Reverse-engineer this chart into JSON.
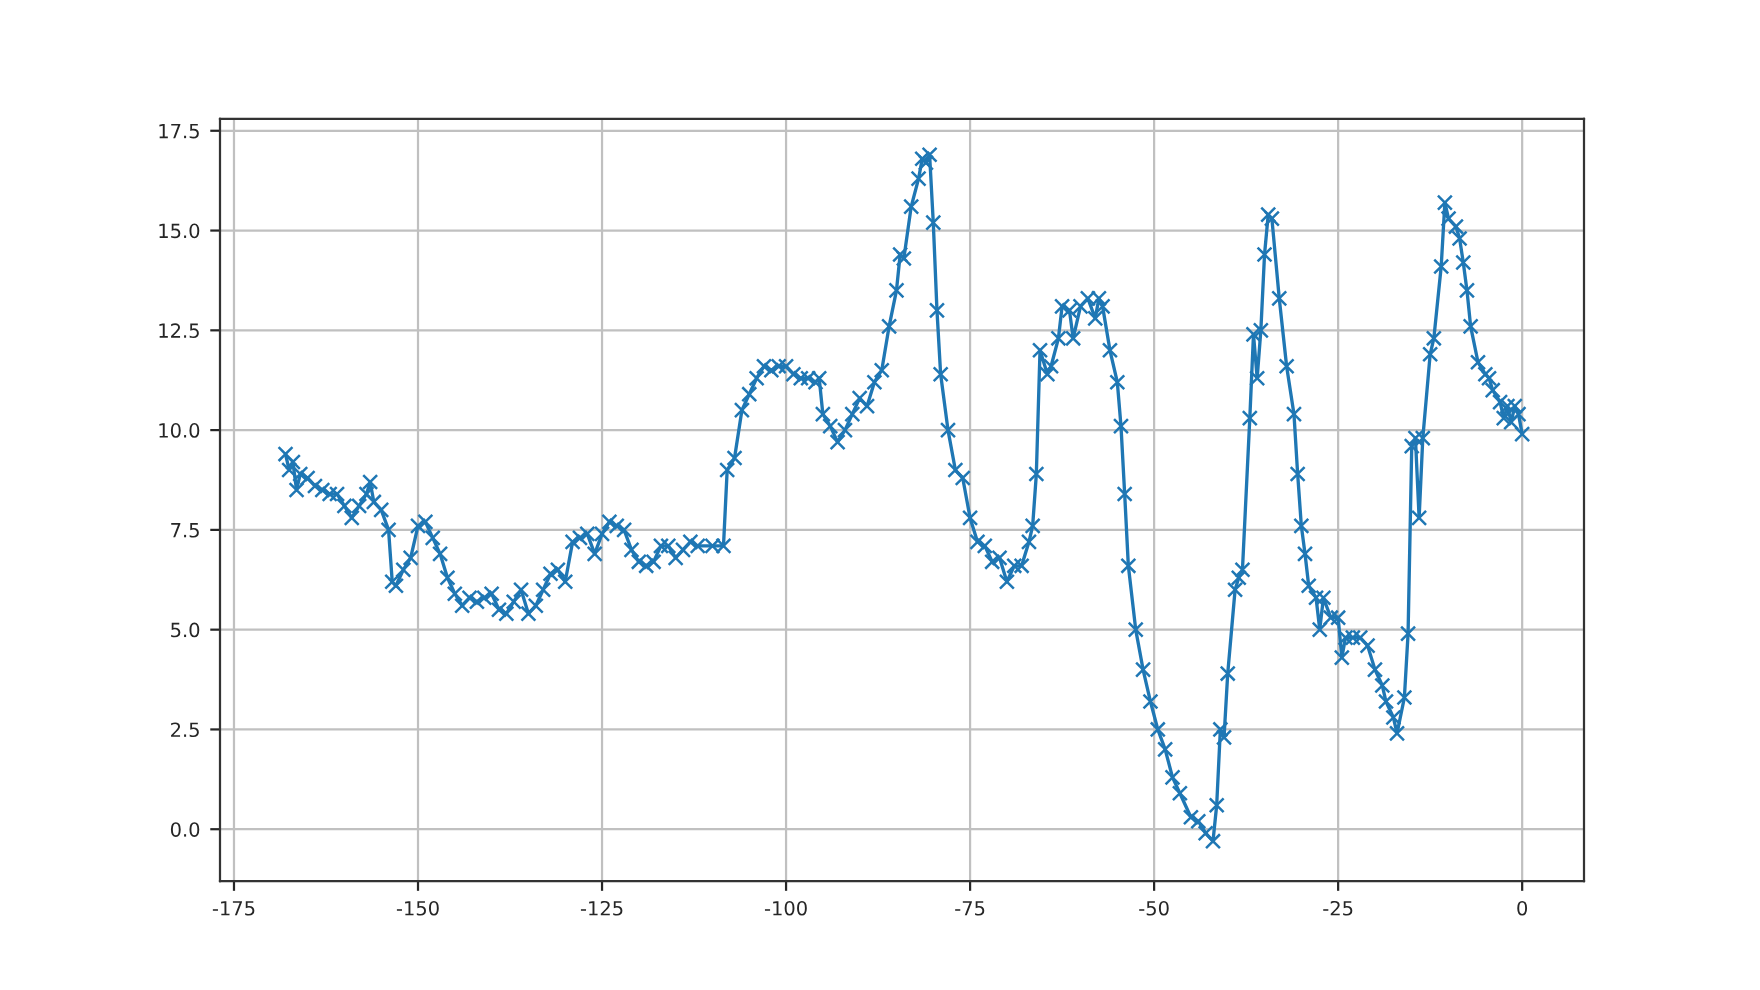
{
  "chart_data": {
    "type": "line",
    "marker": "cross",
    "grid": true,
    "xlim": [
      -176.9,
      8.4
    ],
    "ylim": [
      -1.3,
      17.8
    ],
    "xticks": [
      -175,
      -150,
      -125,
      -100,
      -75,
      -50,
      -25,
      0
    ],
    "yticks": [
      {
        "value": 0,
        "label": "0.0"
      },
      {
        "value": 2.5,
        "label": "2.5"
      },
      {
        "value": 5,
        "label": "5.0"
      },
      {
        "value": 7.5,
        "label": "7.5"
      },
      {
        "value": 10,
        "label": "10.0"
      },
      {
        "value": 12.5,
        "label": "12.5"
      },
      {
        "value": 15,
        "label": "15.0"
      },
      {
        "value": 17.5,
        "label": "17.5"
      }
    ],
    "series": [
      {
        "color": "#1f77b4",
        "x": [
          -168,
          -167.5,
          -167,
          -166.5,
          -166,
          -165,
          -164,
          -163,
          -162,
          -161,
          -160,
          -159,
          -158,
          -157,
          -156.5,
          -156,
          -155,
          -154,
          -153.5,
          -153,
          -152,
          -151,
          -150,
          -149,
          -148,
          -147,
          -146,
          -145,
          -144,
          -143,
          -142,
          -141,
          -140,
          -139,
          -138,
          -137,
          -136,
          -135,
          -134,
          -133,
          -132,
          -131,
          -130,
          -129,
          -128,
          -127,
          -126,
          -125,
          -124,
          -123,
          -122,
          -121,
          -120,
          -119,
          -118,
          -117,
          -116,
          -115,
          -114,
          -113,
          -112,
          -110,
          -108.5,
          -108,
          -107,
          -106,
          -105,
          -104,
          -103,
          -102,
          -101,
          -100,
          -99,
          -98,
          -97,
          -96,
          -95.5,
          -95,
          -94,
          -93,
          -92,
          -91,
          -90,
          -89,
          -88,
          -87,
          -86,
          -85,
          -84.5,
          -84,
          -83,
          -82,
          -81.5,
          -81,
          -80.5,
          -80,
          -79.5,
          -79,
          -78,
          -77,
          -76,
          -75,
          -74,
          -73,
          -72,
          -71,
          -70,
          -69,
          -68,
          -67,
          -66.5,
          -66,
          -65.5,
          -64.5,
          -64,
          -63,
          -62.5,
          -61.5,
          -61,
          -60,
          -59,
          -58,
          -57.5,
          -57,
          -56,
          -55,
          -54.5,
          -54,
          -53.5,
          -52.5,
          -51.5,
          -50.5,
          -49.5,
          -48.5,
          -47.5,
          -46.5,
          -45,
          -44,
          -43,
          -42,
          -41.5,
          -41,
          -40.5,
          -40,
          -39,
          -38.5,
          -38,
          -37,
          -36.5,
          -36,
          -35.5,
          -35,
          -34.5,
          -34,
          -33,
          -32,
          -31,
          -30.5,
          -30,
          -29.5,
          -29,
          -28,
          -27.5,
          -27,
          -26,
          -25,
          -24.5,
          -24,
          -23,
          -22,
          -21,
          -20,
          -19,
          -18.5,
          -17.5,
          -17,
          -16,
          -15.5,
          -15,
          -14.5,
          -14,
          -13.5,
          -12.5,
          -12,
          -11,
          -10.5,
          -10,
          -9,
          -8.5,
          -8,
          -7.5,
          -7,
          -6,
          -5,
          -4.5,
          -4,
          -3,
          -2.5,
          -2,
          -1.5,
          -1,
          -0.5,
          0
        ],
        "values": [
          9.4,
          9.0,
          9.2,
          8.5,
          8.9,
          8.8,
          8.6,
          8.5,
          8.4,
          8.4,
          8.1,
          7.8,
          8.1,
          8.4,
          8.7,
          8.2,
          8.0,
          7.5,
          6.2,
          6.1,
          6.5,
          6.8,
          7.6,
          7.7,
          7.3,
          6.9,
          6.3,
          5.9,
          5.6,
          5.8,
          5.7,
          5.8,
          5.9,
          5.5,
          5.4,
          5.7,
          6.0,
          5.4,
          5.6,
          6.0,
          6.4,
          6.5,
          6.2,
          7.2,
          7.3,
          7.4,
          6.9,
          7.4,
          7.7,
          7.6,
          7.5,
          7.0,
          6.7,
          6.6,
          6.7,
          7.1,
          7.1,
          6.8,
          7.0,
          7.2,
          7.1,
          7.1,
          7.1,
          9.0,
          9.3,
          10.5,
          10.9,
          11.3,
          11.6,
          11.5,
          11.6,
          11.6,
          11.4,
          11.3,
          11.3,
          11.2,
          11.3,
          10.4,
          10.1,
          9.7,
          10.0,
          10.4,
          10.8,
          10.6,
          11.2,
          11.5,
          12.6,
          13.5,
          14.4,
          14.3,
          15.6,
          16.3,
          16.8,
          16.7,
          16.9,
          15.2,
          13.0,
          11.4,
          10.0,
          9.0,
          8.8,
          7.8,
          7.2,
          7.1,
          6.7,
          6.8,
          6.2,
          6.6,
          6.6,
          7.2,
          7.6,
          8.9,
          12.0,
          11.4,
          11.6,
          12.3,
          13.1,
          13.0,
          12.3,
          13.1,
          13.3,
          12.8,
          13.3,
          13.1,
          12.0,
          11.2,
          10.1,
          8.4,
          6.6,
          5.0,
          4.0,
          3.2,
          2.5,
          2.0,
          1.3,
          0.9,
          0.3,
          0.2,
          -0.1,
          -0.3,
          0.6,
          2.5,
          2.3,
          3.9,
          6.0,
          6.3,
          6.5,
          10.3,
          12.4,
          11.3,
          12.5,
          14.4,
          15.4,
          15.3,
          13.3,
          11.6,
          10.4,
          8.9,
          7.6,
          6.9,
          6.1,
          5.8,
          5.0,
          5.8,
          5.3,
          5.3,
          4.3,
          4.8,
          4.8,
          4.8,
          4.6,
          4.0,
          3.6,
          3.2,
          2.8,
          2.4,
          3.3,
          4.9,
          9.6,
          9.8,
          7.8,
          9.8,
          11.9,
          12.3,
          14.1,
          15.7,
          15.3,
          15.1,
          14.8,
          14.2,
          13.5,
          12.6,
          11.7,
          11.4,
          11.3,
          11.0,
          10.7,
          10.3,
          10.6,
          10.2,
          10.6,
          10.4,
          9.9
        ]
      }
    ]
  }
}
